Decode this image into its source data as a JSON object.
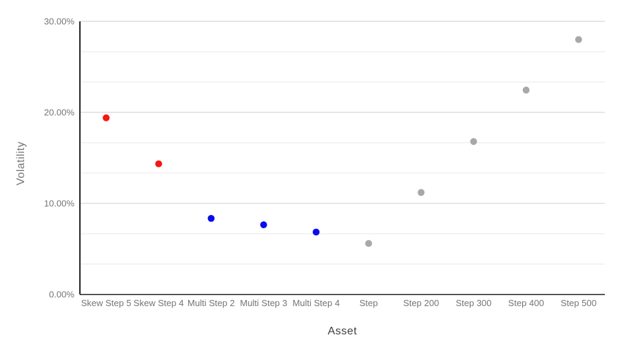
{
  "chart_data": {
    "type": "scatter",
    "title": "",
    "xlabel": "Asset",
    "ylabel": "Volatility",
    "legend": "none",
    "grid": true,
    "categories": [
      "Skew Step 5",
      "Skew Step 4",
      "Multi Step 2",
      "Multi Step 3",
      "Multi Step 4",
      "Step",
      "Step 200",
      "Step 300",
      "Step 400",
      "Step 500"
    ],
    "points": [
      {
        "category": "Skew Step 5",
        "value_pct": 19.4,
        "color": "red"
      },
      {
        "category": "Skew Step 4",
        "value_pct": 14.35,
        "color": "red"
      },
      {
        "category": "Multi Step 2",
        "value_pct": 8.35,
        "color": "blue"
      },
      {
        "category": "Multi Step 3",
        "value_pct": 7.65,
        "color": "blue"
      },
      {
        "category": "Multi Step 4",
        "value_pct": 6.85,
        "color": "blue"
      },
      {
        "category": "Step",
        "value_pct": 5.6,
        "color": "gray"
      },
      {
        "category": "Step 200",
        "value_pct": 11.2,
        "color": "gray"
      },
      {
        "category": "Step 300",
        "value_pct": 16.8,
        "color": "gray"
      },
      {
        "category": "Step 400",
        "value_pct": 22.45,
        "color": "gray"
      },
      {
        "category": "Step 500",
        "value_pct": 28.0,
        "color": "gray"
      }
    ],
    "y_axis": {
      "min": 0,
      "max": 30,
      "major_step": 10,
      "minor_gridlines_per_interval": 2,
      "ticks": [
        {
          "value": 0,
          "label": "0.00%"
        },
        {
          "value": 10,
          "label": "10.00%"
        },
        {
          "value": 20,
          "label": "20.00%"
        },
        {
          "value": 30,
          "label": "30.00%"
        }
      ]
    },
    "palette": {
      "red": "#f51616",
      "blue": "#0b0bf0",
      "gray": "#a8a8a8"
    },
    "style_colors": {
      "major_gridline": "#cccccc",
      "minor_gridline": "#e7e7e7",
      "axis_line": "#222222",
      "tick_text": "#757575",
      "y_title_text": "#757575",
      "x_title_text": "#3d3d3d"
    }
  }
}
